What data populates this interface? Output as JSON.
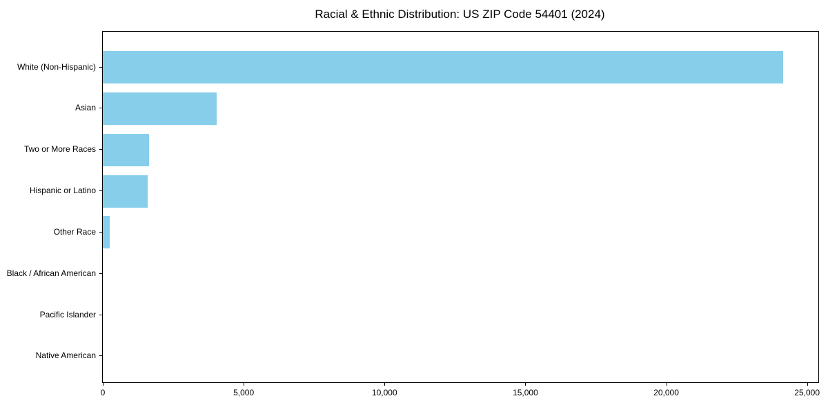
{
  "title": "Racial & Ethnic Distribution: US ZIP Code 54401 (2024)",
  "colors": {
    "bar": "#87CEEB",
    "axis": "#000000",
    "text": "#000000",
    "background": "#FFFFFF"
  },
  "chart_data": {
    "type": "bar",
    "orientation": "horizontal",
    "title": "Racial & Ethnic Distribution: US ZIP Code 54401 (2024)",
    "categories": [
      "White (Non-Hispanic)",
      "Asian",
      "Two or More Races",
      "Hispanic or Latino",
      "Other Race",
      "Black / African American",
      "Pacific Islander",
      "Native American"
    ],
    "values": [
      24160,
      4030,
      1640,
      1590,
      240,
      0,
      0,
      0
    ],
    "xlabel": "",
    "ylabel": "",
    "xlim": [
      0,
      25400
    ],
    "xticks": [
      0,
      5000,
      10000,
      15000,
      20000,
      25000
    ],
    "xtick_labels": [
      "0",
      "5,000",
      "10,000",
      "15,000",
      "20,000",
      "25,000"
    ],
    "grid": false,
    "legend": "none",
    "bar_color": "#87CEEB"
  }
}
